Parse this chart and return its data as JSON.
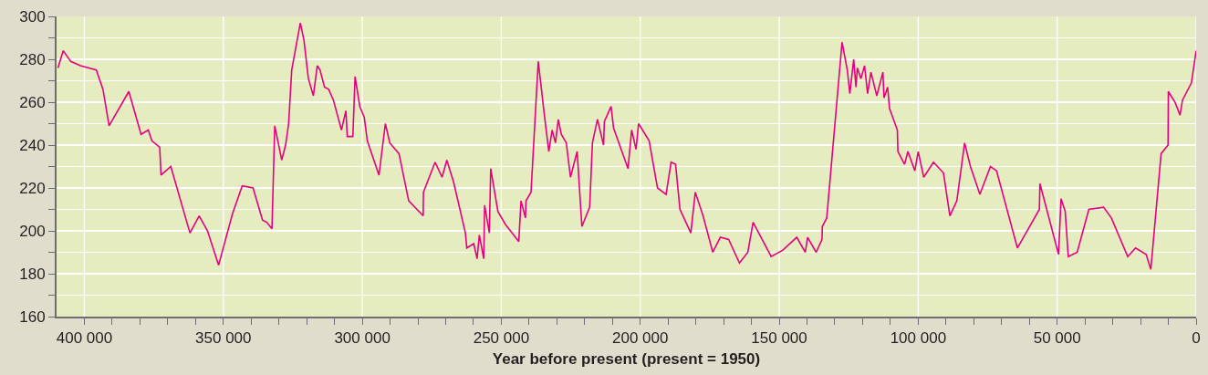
{
  "chart_data": {
    "type": "line",
    "xlabel": "Year before present (present = 1950)",
    "xlim": [
      410000,
      0
    ],
    "xticks": [
      {
        "value": 400000,
        "label": "400 000"
      },
      {
        "value": 390000,
        "label": null
      },
      {
        "value": 380000,
        "label": null
      },
      {
        "value": 370000,
        "label": null
      },
      {
        "value": 360000,
        "label": null
      },
      {
        "value": 350000,
        "label": "350 000"
      },
      {
        "value": 340000,
        "label": null
      },
      {
        "value": 330000,
        "label": null
      },
      {
        "value": 320000,
        "label": null
      },
      {
        "value": 310000,
        "label": null
      },
      {
        "value": 300000,
        "label": "300 000"
      },
      {
        "value": 290000,
        "label": null
      },
      {
        "value": 280000,
        "label": null
      },
      {
        "value": 270000,
        "label": null
      },
      {
        "value": 260000,
        "label": null
      },
      {
        "value": 250000,
        "label": "250 000"
      },
      {
        "value": 240000,
        "label": null
      },
      {
        "value": 230000,
        "label": null
      },
      {
        "value": 220000,
        "label": null
      },
      {
        "value": 210000,
        "label": null
      },
      {
        "value": 200000,
        "label": "200 000"
      },
      {
        "value": 190000,
        "label": null
      },
      {
        "value": 180000,
        "label": null
      },
      {
        "value": 170000,
        "label": null
      },
      {
        "value": 160000,
        "label": null
      },
      {
        "value": 150000,
        "label": "150 000"
      },
      {
        "value": 140000,
        "label": null
      },
      {
        "value": 130000,
        "label": null
      },
      {
        "value": 120000,
        "label": null
      },
      {
        "value": 110000,
        "label": null
      },
      {
        "value": 100000,
        "label": "100 000"
      },
      {
        "value": 90000,
        "label": null
      },
      {
        "value": 80000,
        "label": null
      },
      {
        "value": 70000,
        "label": null
      },
      {
        "value": 60000,
        "label": null
      },
      {
        "value": 50000,
        "label": "50 000"
      },
      {
        "value": 40000,
        "label": null
      },
      {
        "value": 30000,
        "label": null
      },
      {
        "value": 20000,
        "label": null
      },
      {
        "value": 10000,
        "label": null
      },
      0
    ],
    "ylim": [
      160,
      300
    ],
    "yticks": [
      160,
      {
        "value": 170,
        "label": null
      },
      180,
      {
        "value": 190,
        "label": null
      },
      200,
      {
        "value": 210,
        "label": null
      },
      220,
      {
        "value": 230,
        "label": null
      },
      240,
      {
        "value": 250,
        "label": null
      },
      260,
      {
        "value": 270,
        "label": null
      },
      280,
      {
        "value": 290,
        "label": null
      },
      300
    ],
    "grid": true,
    "marker": "none",
    "line_style": "solid",
    "series": [
      {
        "color": "#e6007e",
        "x": [
          409500,
          407600,
          404900,
          401400,
          395700,
          393300,
          391100,
          384000,
          379600,
          377000,
          375700,
          372900,
          372400,
          368900,
          362000,
          358700,
          355700,
          351700,
          346700,
          343200,
          339300,
          335900,
          334400,
          332500,
          331500,
          329000,
          327600,
          326500,
          325400,
          322300,
          321000,
          319400,
          317600,
          316200,
          315200,
          313600,
          312100,
          310400,
          307500,
          305900,
          305400,
          303400,
          302600,
          300900,
          299300,
          298200,
          294000,
          291700,
          290100,
          286800,
          283300,
          278100,
          278000,
          273800,
          271300,
          269600,
          267200,
          262900,
          262400,
          259900,
          258700,
          257900,
          256300,
          256000,
          254300,
          253800,
          251200,
          248500,
          243700,
          242900,
          241300,
          241100,
          239300,
          236700,
          234300,
          232900,
          231700,
          230500,
          229500,
          228400,
          226600,
          225100,
          222700,
          221000,
          218200,
          217200,
          215400,
          213200,
          212900,
          210500,
          209600,
          204400,
          203100,
          201500,
          200600,
          196800,
          193800,
          190700,
          188900,
          187300,
          185700,
          181800,
          180200,
          177400,
          173900,
          171200,
          168200,
          164300,
          161300,
          159400,
          152900,
          148700,
          143700,
          140600,
          139800,
          136700,
          134600,
          134500,
          132900,
          127400,
          125500,
          124600,
          123200,
          122400,
          121900,
          120600,
          119300,
          118200,
          117000,
          114900,
          112700,
          112300,
          111000,
          110300,
          107500,
          107300,
          104900,
          103700,
          101200,
          100000,
          98000,
          94500,
          90900,
          88600,
          86100,
          83300,
          81200,
          77800,
          74000,
          71800,
          64300,
          56400,
          56200,
          49500,
          48600,
          47100,
          46000,
          42800,
          38600,
          33300,
          30500,
          24600,
          21800,
          18000,
          16300,
          12600,
          10100,
          10000,
          7600,
          5800,
          4900,
          1700,
          0
        ],
        "values": [
          276,
          284,
          279,
          277,
          275,
          266,
          249,
          265,
          245,
          247,
          242,
          239,
          226,
          230,
          199,
          207,
          200,
          184,
          208,
          221,
          220,
          205,
          204,
          201,
          249,
          233,
          240,
          250,
          275,
          297,
          289,
          271,
          263,
          277,
          275,
          267,
          266,
          261,
          247,
          256,
          244,
          244,
          272,
          258,
          253,
          242,
          226,
          250,
          241,
          236,
          214,
          207,
          218,
          232,
          225,
          233,
          223,
          199,
          192,
          194,
          187,
          198,
          187,
          212,
          199,
          229,
          209,
          203,
          195,
          214,
          206,
          214,
          218,
          279,
          252,
          237,
          247,
          241,
          252,
          245,
          241,
          225,
          237,
          202,
          211,
          241,
          252,
          240,
          251,
          258,
          248,
          229,
          247,
          238,
          250,
          242,
          220,
          217,
          232,
          231,
          210,
          199,
          218,
          207,
          190,
          197,
          196,
          185,
          190,
          204,
          188,
          191,
          197,
          190,
          197,
          190,
          196,
          202,
          206,
          288,
          275,
          264,
          280,
          267,
          276,
          271,
          277,
          264,
          274,
          263,
          274,
          262,
          267,
          257,
          247,
          237,
          231,
          237,
          228,
          237,
          225,
          232,
          227,
          207,
          214,
          241,
          230,
          217,
          230,
          228,
          192,
          210,
          222,
          189,
          215,
          209,
          188,
          190,
          210,
          211,
          206,
          188,
          192,
          189,
          182,
          236,
          240,
          265,
          260,
          254,
          261,
          269,
          284
        ]
      }
    ]
  }
}
